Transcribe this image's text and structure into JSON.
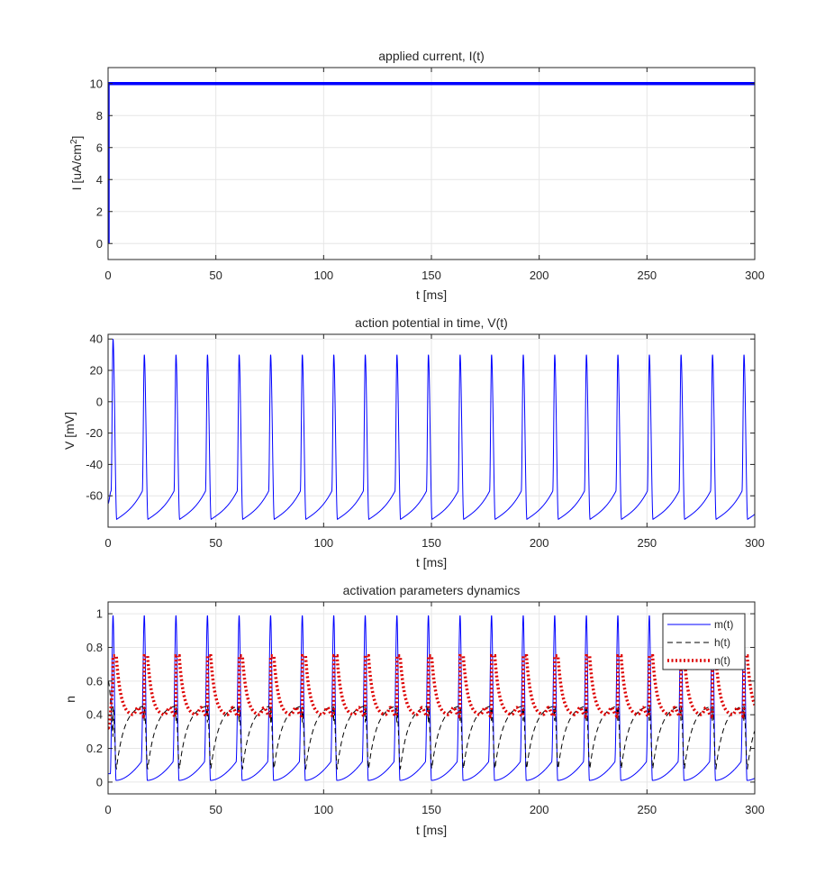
{
  "chart_data": [
    {
      "type": "line",
      "title": "applied current, I(t)",
      "xlabel": "t [ms]",
      "ylabel": "I [uA/cm2]",
      "xlim": [
        0,
        300
      ],
      "ylim": [
        -1,
        11
      ],
      "grid": true,
      "xticks": [
        0,
        50,
        100,
        150,
        200,
        250,
        300
      ],
      "yticks": [
        0,
        2,
        4,
        6,
        8,
        10
      ],
      "series": [
        {
          "color": "#0000ff",
          "style": "solid",
          "kind": "step",
          "x": [
            0,
            0,
            300
          ],
          "y": [
            0,
            10,
            10
          ]
        }
      ]
    },
    {
      "type": "line",
      "title": "action potential in time, V(t)",
      "xlabel": "t [ms]",
      "ylabel": "V [mV]",
      "xlim": [
        0,
        300
      ],
      "ylim": [
        -80,
        43
      ],
      "grid": true,
      "xticks": [
        0,
        50,
        100,
        150,
        200,
        250,
        300
      ],
      "yticks": [
        -60,
        -40,
        -20,
        0,
        20,
        40
      ],
      "series": [
        {
          "color": "#0000ff",
          "style": "solid",
          "kind": "spikes",
          "v_start": -65,
          "v_first_peak": 40,
          "v_peak": 30,
          "v_trough": -75,
          "v_threshold": -57,
          "spike_times": [
            2.3,
            16.8,
            31.5,
            46.1,
            60.8,
            75.4,
            90.1,
            104.7,
            119.3,
            134.0,
            148.6,
            163.3,
            177.9,
            192.6,
            207.2,
            221.9,
            236.5,
            251.1,
            265.8,
            280.4,
            295.0
          ]
        }
      ]
    },
    {
      "type": "line",
      "title": "activation parameters dynamics",
      "xlabel": "t [ms]",
      "ylabel": "n",
      "xlim": [
        0,
        300
      ],
      "ylim": [
        -0.07,
        1.07
      ],
      "grid": true,
      "xticks": [
        0,
        50,
        100,
        150,
        200,
        250,
        300
      ],
      "yticks": [
        0,
        0.2,
        0.4,
        0.6,
        0.8,
        1
      ],
      "legend_position": "top-right",
      "spike_times": [
        2.3,
        16.8,
        31.5,
        46.1,
        60.8,
        75.4,
        90.1,
        104.7,
        119.3,
        134.0,
        148.6,
        163.3,
        177.9,
        192.6,
        207.2,
        221.9,
        236.5,
        251.1,
        265.8,
        280.4,
        295.0
      ],
      "series": [
        {
          "name": "m(t)",
          "color": "#0000ff",
          "style": "solid",
          "start": 0.05,
          "baseline": 0.01,
          "pre_spike": 0.12,
          "peak": 0.99
        },
        {
          "name": "h(t)",
          "color": "#000000",
          "style": "dashed",
          "start": 0.6,
          "trough": 0.08,
          "plateau": 0.45
        },
        {
          "name": "n(t)",
          "color": "#dd0000",
          "style": "dotted",
          "start": 0.32,
          "peak": 0.75,
          "trough": 0.39,
          "hump": 0.44
        }
      ]
    }
  ]
}
